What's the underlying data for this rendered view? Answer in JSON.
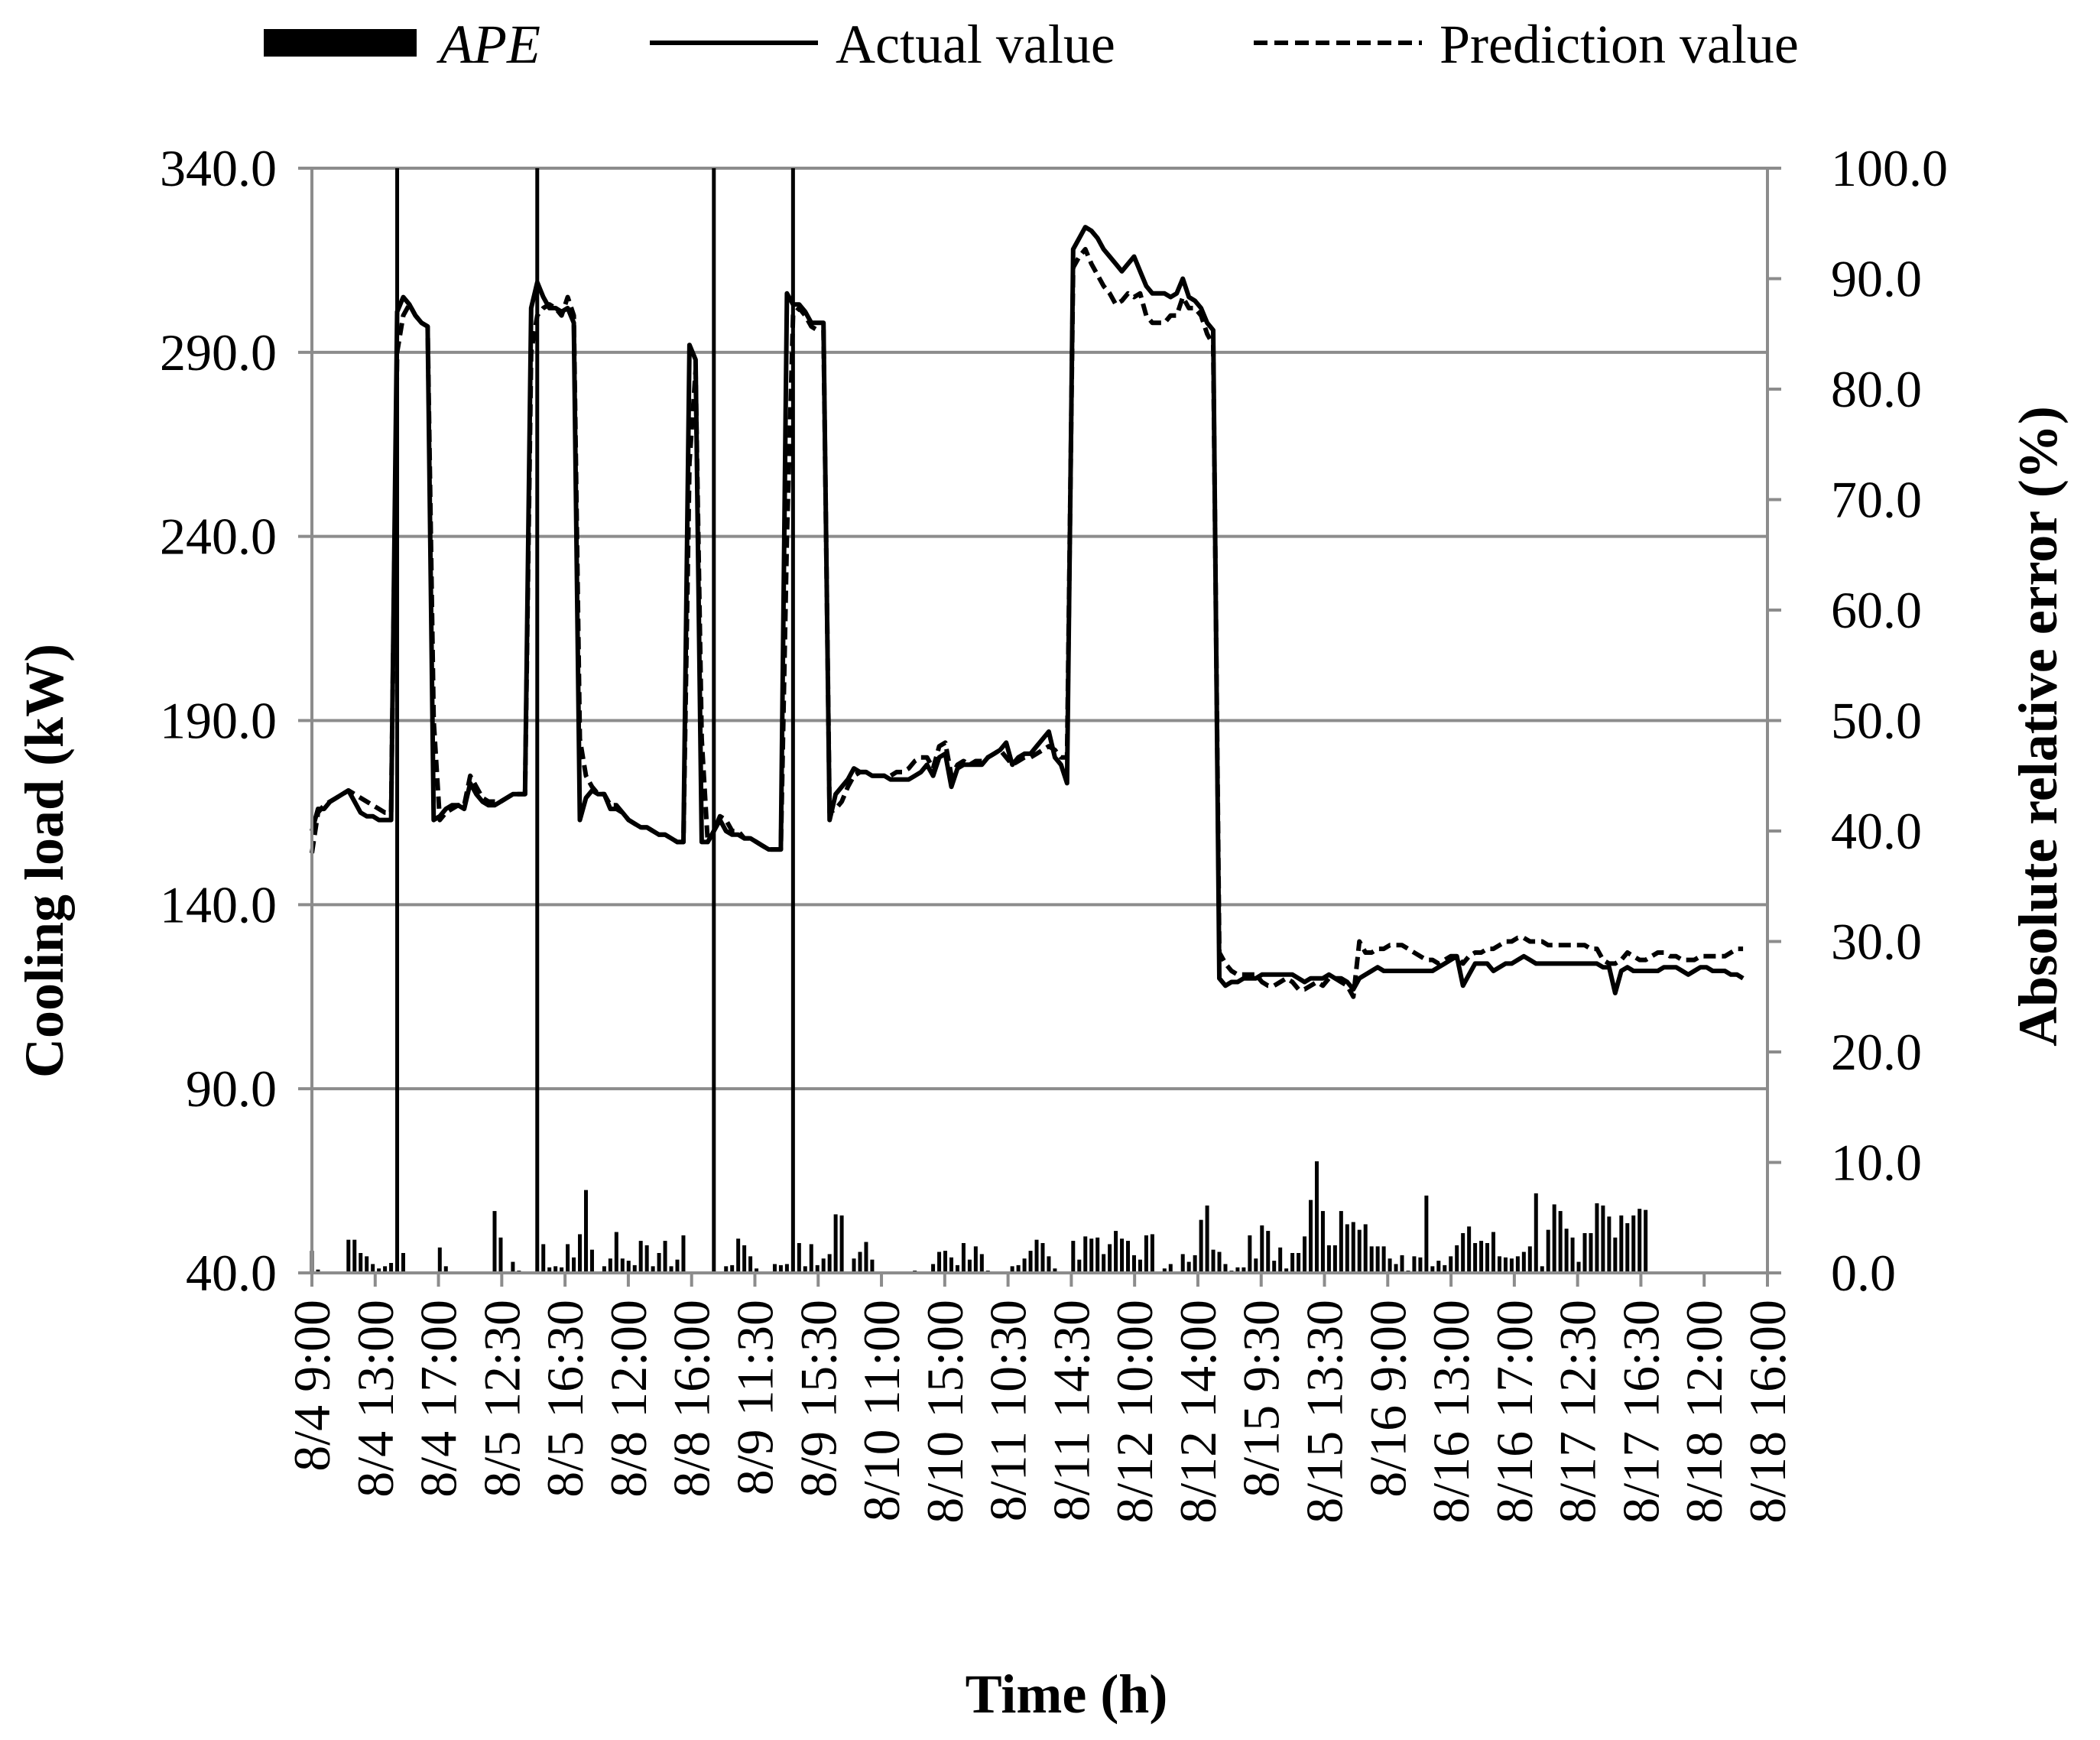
{
  "chart_data": {
    "type": "line",
    "xlabel": "Time (h)",
    "ylabel": "Cooling load (kW)",
    "y2label": "Absolute relative error (%)",
    "ylim": [
      40,
      340
    ],
    "y2lim": [
      0,
      100
    ],
    "y_ticks": [
      "40.0",
      "90.0",
      "140.0",
      "190.0",
      "240.0",
      "290.0",
      "340.0"
    ],
    "y2_ticks": [
      "0.0",
      "10.0",
      "20.0",
      "30.0",
      "40.0",
      "50.0",
      "60.0",
      "70.0",
      "80.0",
      "90.0",
      "100.0"
    ],
    "x_count": 240,
    "x_tick_labels": [
      "8/4 9:00",
      "8/4 13:00",
      "8/4 17:00",
      "8/5 12:30",
      "8/5 16:30",
      "8/8 12:00",
      "8/8 16:00",
      "8/9 11:30",
      "8/9 15:30",
      "8/10 11:00",
      "8/10 15:00",
      "8/11 10:30",
      "8/11 14:30",
      "8/12 10:00",
      "8/12 14:00",
      "8/15 9:30",
      "8/15 13:30",
      "8/16 9:00",
      "8/16 13:00",
      "8/16 17:00",
      "8/17 12:30",
      "8/17 16:30",
      "8/18 12:00",
      "8/18 16:00"
    ],
    "grid": true,
    "legend_position": "top",
    "series": [
      {
        "name": "APE",
        "type": "bar",
        "axis": "right",
        "color": "#000000",
        "values": [
          2.0,
          0.3,
          0.0,
          0.0,
          0.0,
          0.0,
          3.0,
          3.0,
          1.8,
          1.5,
          0.8,
          0.4,
          0.6,
          0.9,
          100.0,
          1.8,
          0.0,
          0.0,
          0.0,
          0.0,
          0.0,
          2.3,
          0.6,
          0.0,
          0.0,
          0.0,
          0.0,
          0.0,
          0.0,
          0.0,
          5.6,
          3.2,
          0.0,
          1.0,
          0.2,
          0.0,
          0.0,
          100.0,
          2.6,
          0.5,
          0.6,
          0.5,
          2.6,
          1.4,
          3.5,
          7.5,
          2.1,
          0.0,
          0.6,
          1.3,
          3.7,
          1.3,
          1.1,
          0.7,
          2.9,
          2.5,
          0.6,
          1.8,
          2.9,
          0.6,
          1.2,
          3.4,
          0.0,
          0.0,
          0.0,
          0.0,
          100.0,
          0.0,
          0.6,
          0.7,
          3.1,
          2.5,
          1.5,
          0.4,
          0.0,
          0.0,
          0.8,
          0.7,
          0.8,
          100.0,
          2.7,
          0.6,
          2.6,
          0.7,
          1.3,
          1.7,
          5.3,
          5.2,
          0.0,
          1.3,
          1.9,
          2.8,
          1.2,
          0.0,
          0.0,
          0.0,
          0.0,
          0.0,
          0.0,
          0.2,
          0.0,
          0.0,
          0.8,
          1.9,
          2.0,
          1.4,
          0.7,
          2.7,
          1.2,
          2.4,
          1.7,
          0.2,
          0.0,
          0.0,
          0.0,
          0.6,
          0.7,
          1.3,
          2.0,
          3.0,
          2.7,
          1.5,
          0.4,
          0.0,
          0.0,
          2.9,
          1.2,
          3.3,
          3.1,
          3.2,
          1.7,
          2.6,
          3.8,
          3.1,
          2.9,
          1.6,
          1.2,
          3.4,
          3.5,
          0.0,
          0.4,
          0.8,
          0.0,
          1.7,
          1.0,
          1.6,
          4.8,
          6.1,
          2.1,
          1.9,
          0.8,
          0.2,
          0.5,
          0.5,
          3.4,
          1.3,
          4.3,
          3.8,
          1.1,
          2.3,
          0.4,
          1.8,
          1.8,
          3.3,
          6.6,
          10.1,
          5.6,
          2.5,
          2.5,
          5.6,
          4.4,
          4.6,
          3.9,
          4.4,
          2.4,
          2.4,
          2.4,
          1.3,
          0.8,
          1.6,
          0.2,
          1.5,
          1.4,
          7.0,
          0.6,
          1.1,
          0.7,
          1.5,
          2.5,
          3.6,
          4.2,
          2.7,
          2.9,
          2.7,
          3.7,
          1.5,
          1.4,
          1.3,
          1.5,
          1.9,
          2.4,
          7.2,
          0.6,
          3.9,
          6.2,
          5.6,
          4.0,
          3.2,
          1.0,
          3.6,
          3.6,
          6.3,
          6.1,
          5.1,
          3.2,
          5.2,
          4.5,
          5.2,
          5.8,
          5.7
        ]
      },
      {
        "name": "Actual value",
        "type": "line",
        "style": "solid",
        "axis": "left",
        "color": "#000000",
        "values": [
          160,
          166,
          166,
          168,
          169,
          170,
          171,
          168,
          165,
          164,
          164,
          163,
          163,
          163,
          301,
          305,
          303,
          300,
          298,
          297,
          163,
          164,
          166,
          167,
          167,
          166,
          173,
          170,
          168,
          167,
          167,
          168,
          169,
          170,
          170,
          170,
          302,
          309,
          305,
          302,
          302,
          301,
          302,
          298,
          163,
          169,
          171,
          170,
          170,
          166,
          166,
          165,
          163,
          162,
          161,
          161,
          160,
          159,
          159,
          158,
          157,
          157,
          292,
          288,
          157,
          157,
          160,
          163,
          160,
          159,
          159,
          158,
          158,
          157,
          156,
          155,
          155,
          155,
          306,
          303,
          303,
          301,
          298,
          298,
          298,
          163,
          170,
          172,
          174,
          177,
          176,
          176,
          175,
          175,
          175,
          174,
          174,
          174,
          174,
          175,
          176,
          178,
          175,
          180,
          181,
          172,
          177,
          178,
          178,
          178,
          178,
          180,
          181,
          182,
          184,
          178,
          180,
          181,
          181,
          183,
          185,
          187,
          180,
          178,
          173,
          318,
          321,
          324,
          323,
          321,
          318,
          316,
          314,
          312,
          314,
          316,
          312,
          308,
          306,
          306,
          306,
          305,
          306,
          310,
          305,
          304,
          302,
          298,
          296,
          120,
          118,
          119,
          119,
          120,
          120,
          120,
          121,
          121,
          121,
          121,
          121,
          121,
          120,
          119,
          120,
          120,
          120,
          121,
          120,
          120,
          119,
          117,
          120,
          121,
          122,
          123,
          122,
          122,
          122,
          122,
          122,
          122,
          122,
          122,
          122,
          123,
          124,
          125,
          126,
          118,
          121,
          124,
          124,
          124,
          122,
          123,
          124,
          124,
          125,
          126,
          125,
          124,
          124,
          124,
          124,
          124,
          124,
          124,
          124,
          124,
          124,
          124,
          123,
          123,
          116,
          122,
          123,
          122,
          122,
          122,
          122,
          122,
          123,
          123,
          123,
          122,
          121,
          122,
          123,
          123,
          122,
          122,
          122,
          121,
          121,
          120
        ]
      },
      {
        "name": "Prediction value",
        "type": "line",
        "style": "dashed",
        "axis": "left",
        "color": "#000000",
        "values": [
          154,
          165,
          167,
          168,
          169,
          170,
          171,
          170,
          169,
          168,
          167,
          166,
          165,
          165,
          290,
          300,
          303,
          300,
          298,
          297,
          190,
          163,
          165,
          166,
          167,
          167,
          175,
          172,
          169,
          168,
          168,
          168,
          169,
          170,
          170,
          170,
          290,
          300,
          302,
          303,
          302,
          300,
          305,
          300,
          185,
          175,
          172,
          170,
          170,
          167,
          167,
          165,
          163,
          162,
          161,
          161,
          160,
          159,
          159,
          158,
          157,
          157,
          260,
          285,
          185,
          157,
          160,
          164,
          163,
          160,
          160,
          158,
          158,
          157,
          156,
          155,
          155,
          155,
          240,
          300,
          302,
          300,
          297,
          296,
          296,
          165,
          166,
          168,
          172,
          175,
          176,
          176,
          175,
          175,
          175,
          175,
          176,
          176,
          177,
          179,
          180,
          180,
          177,
          183,
          184,
          175,
          178,
          179,
          178,
          179,
          179,
          180,
          181,
          182,
          180,
          178,
          179,
          180,
          180,
          181,
          182,
          183,
          182,
          180,
          180,
          313,
          316,
          318,
          314,
          311,
          308,
          306,
          303,
          304,
          306,
          305,
          306,
          300,
          298,
          298,
          298,
          300,
          300,
          305,
          302,
          302,
          300,
          295,
          292,
          127,
          124,
          122,
          121,
          121,
          121,
          121,
          119,
          118,
          118,
          119,
          120,
          119,
          117,
          117,
          118,
          119,
          118,
          120,
          120,
          119,
          118,
          115,
          130,
          127,
          127,
          128,
          128,
          129,
          129,
          129,
          128,
          127,
          126,
          125,
          125,
          124,
          125,
          126,
          126,
          124,
          126,
          127,
          127,
          128,
          128,
          129,
          130,
          130,
          131,
          131,
          130,
          130,
          130,
          129,
          129,
          129,
          129,
          129,
          129,
          129,
          128,
          128,
          125,
          124,
          124,
          125,
          127,
          126,
          125,
          125,
          126,
          127,
          127,
          126,
          126,
          125,
          125,
          125,
          126,
          126,
          126,
          126,
          126,
          127,
          128,
          128
        ]
      }
    ]
  }
}
